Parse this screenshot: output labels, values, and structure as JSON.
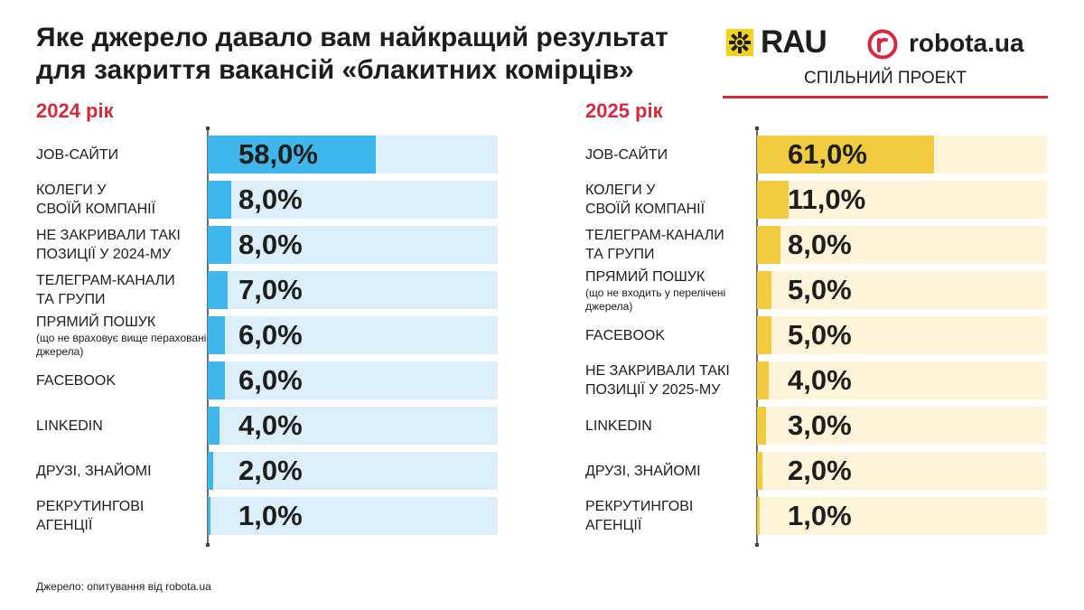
{
  "header": {
    "title_line1": "Яке джерело давало вам найкращий результат",
    "title_line2": "для закриття вакансій «блакитних комірців»"
  },
  "logos": {
    "rau": "RAU",
    "robota": "robota.ua",
    "joint_project": "СПІЛЬНИЙ ПРОЕКТ"
  },
  "colors": {
    "accent_red": "#d8283c",
    "bar_2024": "#3fb6ec",
    "track_2024": "#dbeffa",
    "bar_2025": "#f2cc40",
    "track_2025": "#fdf4d9",
    "rau_yellow": "#f2d21c"
  },
  "source": "Джерело: опитування від robota.ua",
  "chart_data": [
    {
      "type": "bar",
      "orientation": "horizontal",
      "title": "2024 рік",
      "xlim": [
        0,
        100
      ],
      "categories": [
        {
          "label": "JOB-САЙТИ",
          "sub": ""
        },
        {
          "label": "КОЛЕГИ У СВОЇЙ КОМПАНІЇ",
          "sub": ""
        },
        {
          "label": "НЕ ЗАКРИВАЛИ ТАКІ ПОЗИЦІЇ У 2024-МУ",
          "sub": ""
        },
        {
          "label": "ТЕЛЕГРАМ-КАНАЛИ ТА ГРУПИ",
          "sub": ""
        },
        {
          "label": "ПРЯМИЙ ПОШУК",
          "sub": "(що не враховує вище пераховані джерела)"
        },
        {
          "label": "FACEBOOK",
          "sub": ""
        },
        {
          "label": "LINKEDIN",
          "sub": ""
        },
        {
          "label": "ДРУЗІ, ЗНАЙОМІ",
          "sub": ""
        },
        {
          "label": "РЕКРУТИНГОВІ АГЕНЦІЇ",
          "sub": ""
        }
      ],
      "values": [
        58.0,
        8.0,
        8.0,
        7.0,
        6.0,
        6.0,
        4.0,
        2.0,
        1.0
      ],
      "value_labels": [
        "58,0%",
        "8,0%",
        "8,0%",
        "7,0%",
        "6,0%",
        "6,0%",
        "4,0%",
        "2,0%",
        "1,0%"
      ]
    },
    {
      "type": "bar",
      "orientation": "horizontal",
      "title": "2025 рік",
      "xlim": [
        0,
        100
      ],
      "categories": [
        {
          "label": "JOB-САЙТИ",
          "sub": ""
        },
        {
          "label": "КОЛЕГИ У СВОЇЙ КОМПАНІЇ",
          "sub": ""
        },
        {
          "label": "ТЕЛЕГРАМ-КАНАЛИ ТА ГРУПИ",
          "sub": ""
        },
        {
          "label": "ПРЯМИЙ ПОШУК",
          "sub": "(що не входить у перелічені джерела)"
        },
        {
          "label": "FACEBOOK",
          "sub": ""
        },
        {
          "label": "НЕ ЗАКРИВАЛИ ТАКІ ПОЗИЦІЇ У 2025-МУ",
          "sub": ""
        },
        {
          "label": "LINKEDIN",
          "sub": ""
        },
        {
          "label": "ДРУЗІ, ЗНАЙОМІ",
          "sub": ""
        },
        {
          "label": "РЕКРУТИНГОВІ АГЕНЦІЇ",
          "sub": ""
        }
      ],
      "values": [
        61.0,
        11.0,
        8.0,
        5.0,
        5.0,
        4.0,
        3.0,
        2.0,
        1.0
      ],
      "value_labels": [
        "61,0%",
        "11,0%",
        "8,0%",
        "5,0%",
        "5,0%",
        "4,0%",
        "3,0%",
        "2,0%",
        "1,0%"
      ]
    }
  ]
}
